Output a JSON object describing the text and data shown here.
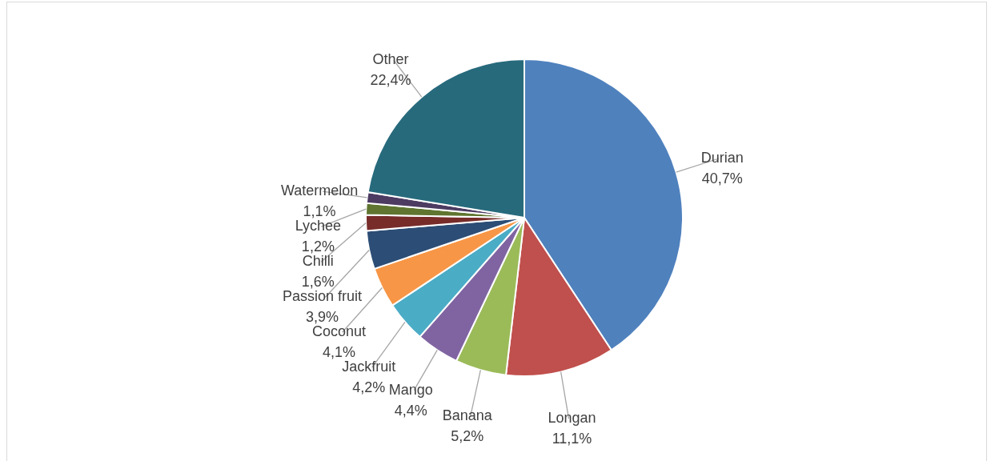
{
  "chart_data": {
    "type": "pie",
    "categories": [
      "Durian",
      "Longan",
      "Banana",
      "Mango",
      "Jackfruit",
      "Coconut",
      "Passion fruit",
      "Chilli",
      "Lychee",
      "Watermelon",
      "Other"
    ],
    "values": [
      40.7,
      11.1,
      5.2,
      4.4,
      4.2,
      4.1,
      3.9,
      1.6,
      1.2,
      1.1,
      22.4
    ],
    "colors": [
      "#4f81bd",
      "#c0504d",
      "#9bbb59",
      "#8064a2",
      "#4bacc6",
      "#f79646",
      "#2c4d75",
      "#772c2a",
      "#5f7530",
      "#4d3b62",
      "#276a7c"
    ],
    "value_labels": [
      "40,7%",
      "11,1%",
      "5,2%",
      "4,4%",
      "4,2%",
      "4,1%",
      "3,9%",
      "1,6%",
      "1,2%",
      "1,1%",
      "22,4%"
    ]
  }
}
